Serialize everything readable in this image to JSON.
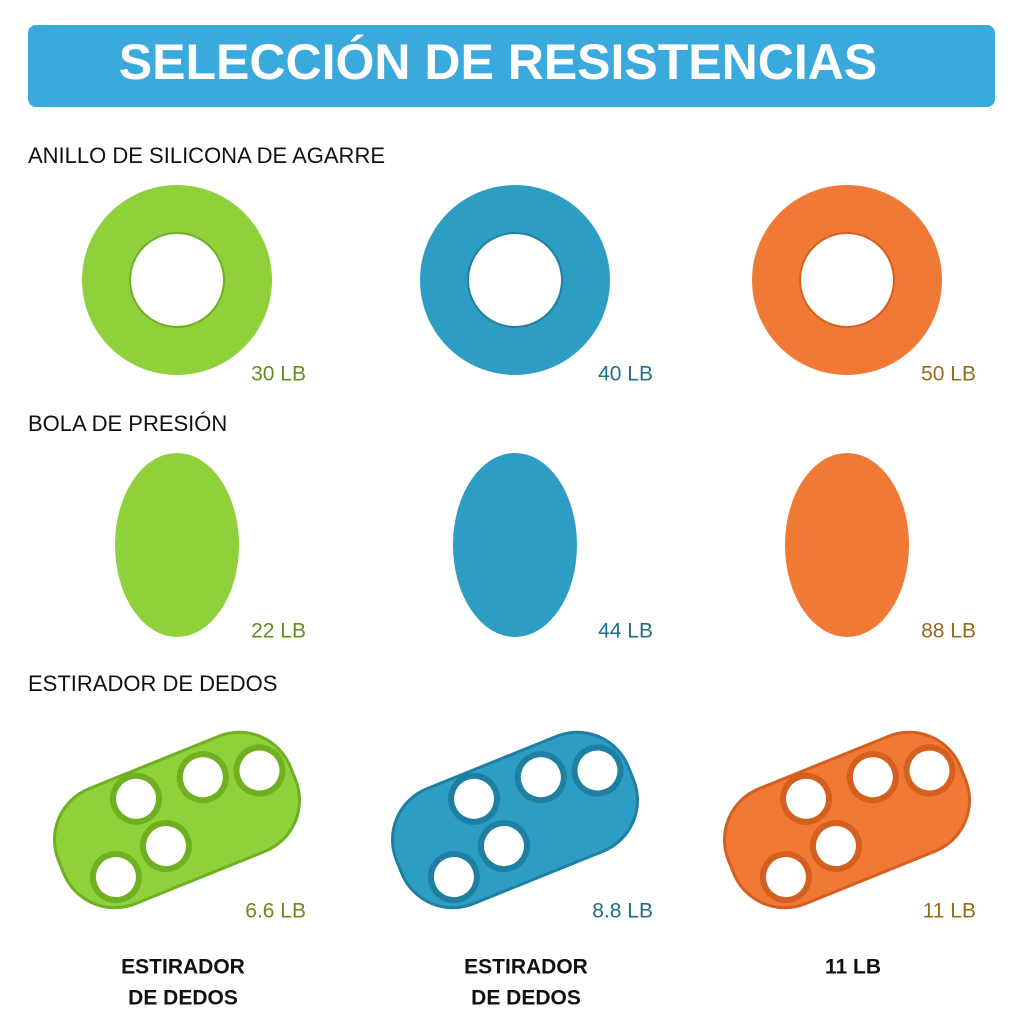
{
  "header": {
    "title": "SELECCIÓN DE RESISTENCIAS"
  },
  "sections": [
    {
      "title": "ANILLO DE SILICONA DE AGARRE",
      "items": [
        "30 LB",
        "40 LB",
        "50 LB"
      ]
    },
    {
      "title": "BOLA DE PRESIÓN",
      "items": [
        "22 LB",
        "44 LB",
        "88 LB"
      ]
    },
    {
      "title": "ESTIRADOR DE DEDOS",
      "items": [
        "6.6 LB",
        "8.8 LB",
        "11 LB"
      ]
    }
  ],
  "footer": [
    [
      "ESTIRADOR",
      "DE DEDOS"
    ],
    [
      "ESTIRADOR",
      "DE DEDOS"
    ],
    [
      "11 LB"
    ]
  ]
}
